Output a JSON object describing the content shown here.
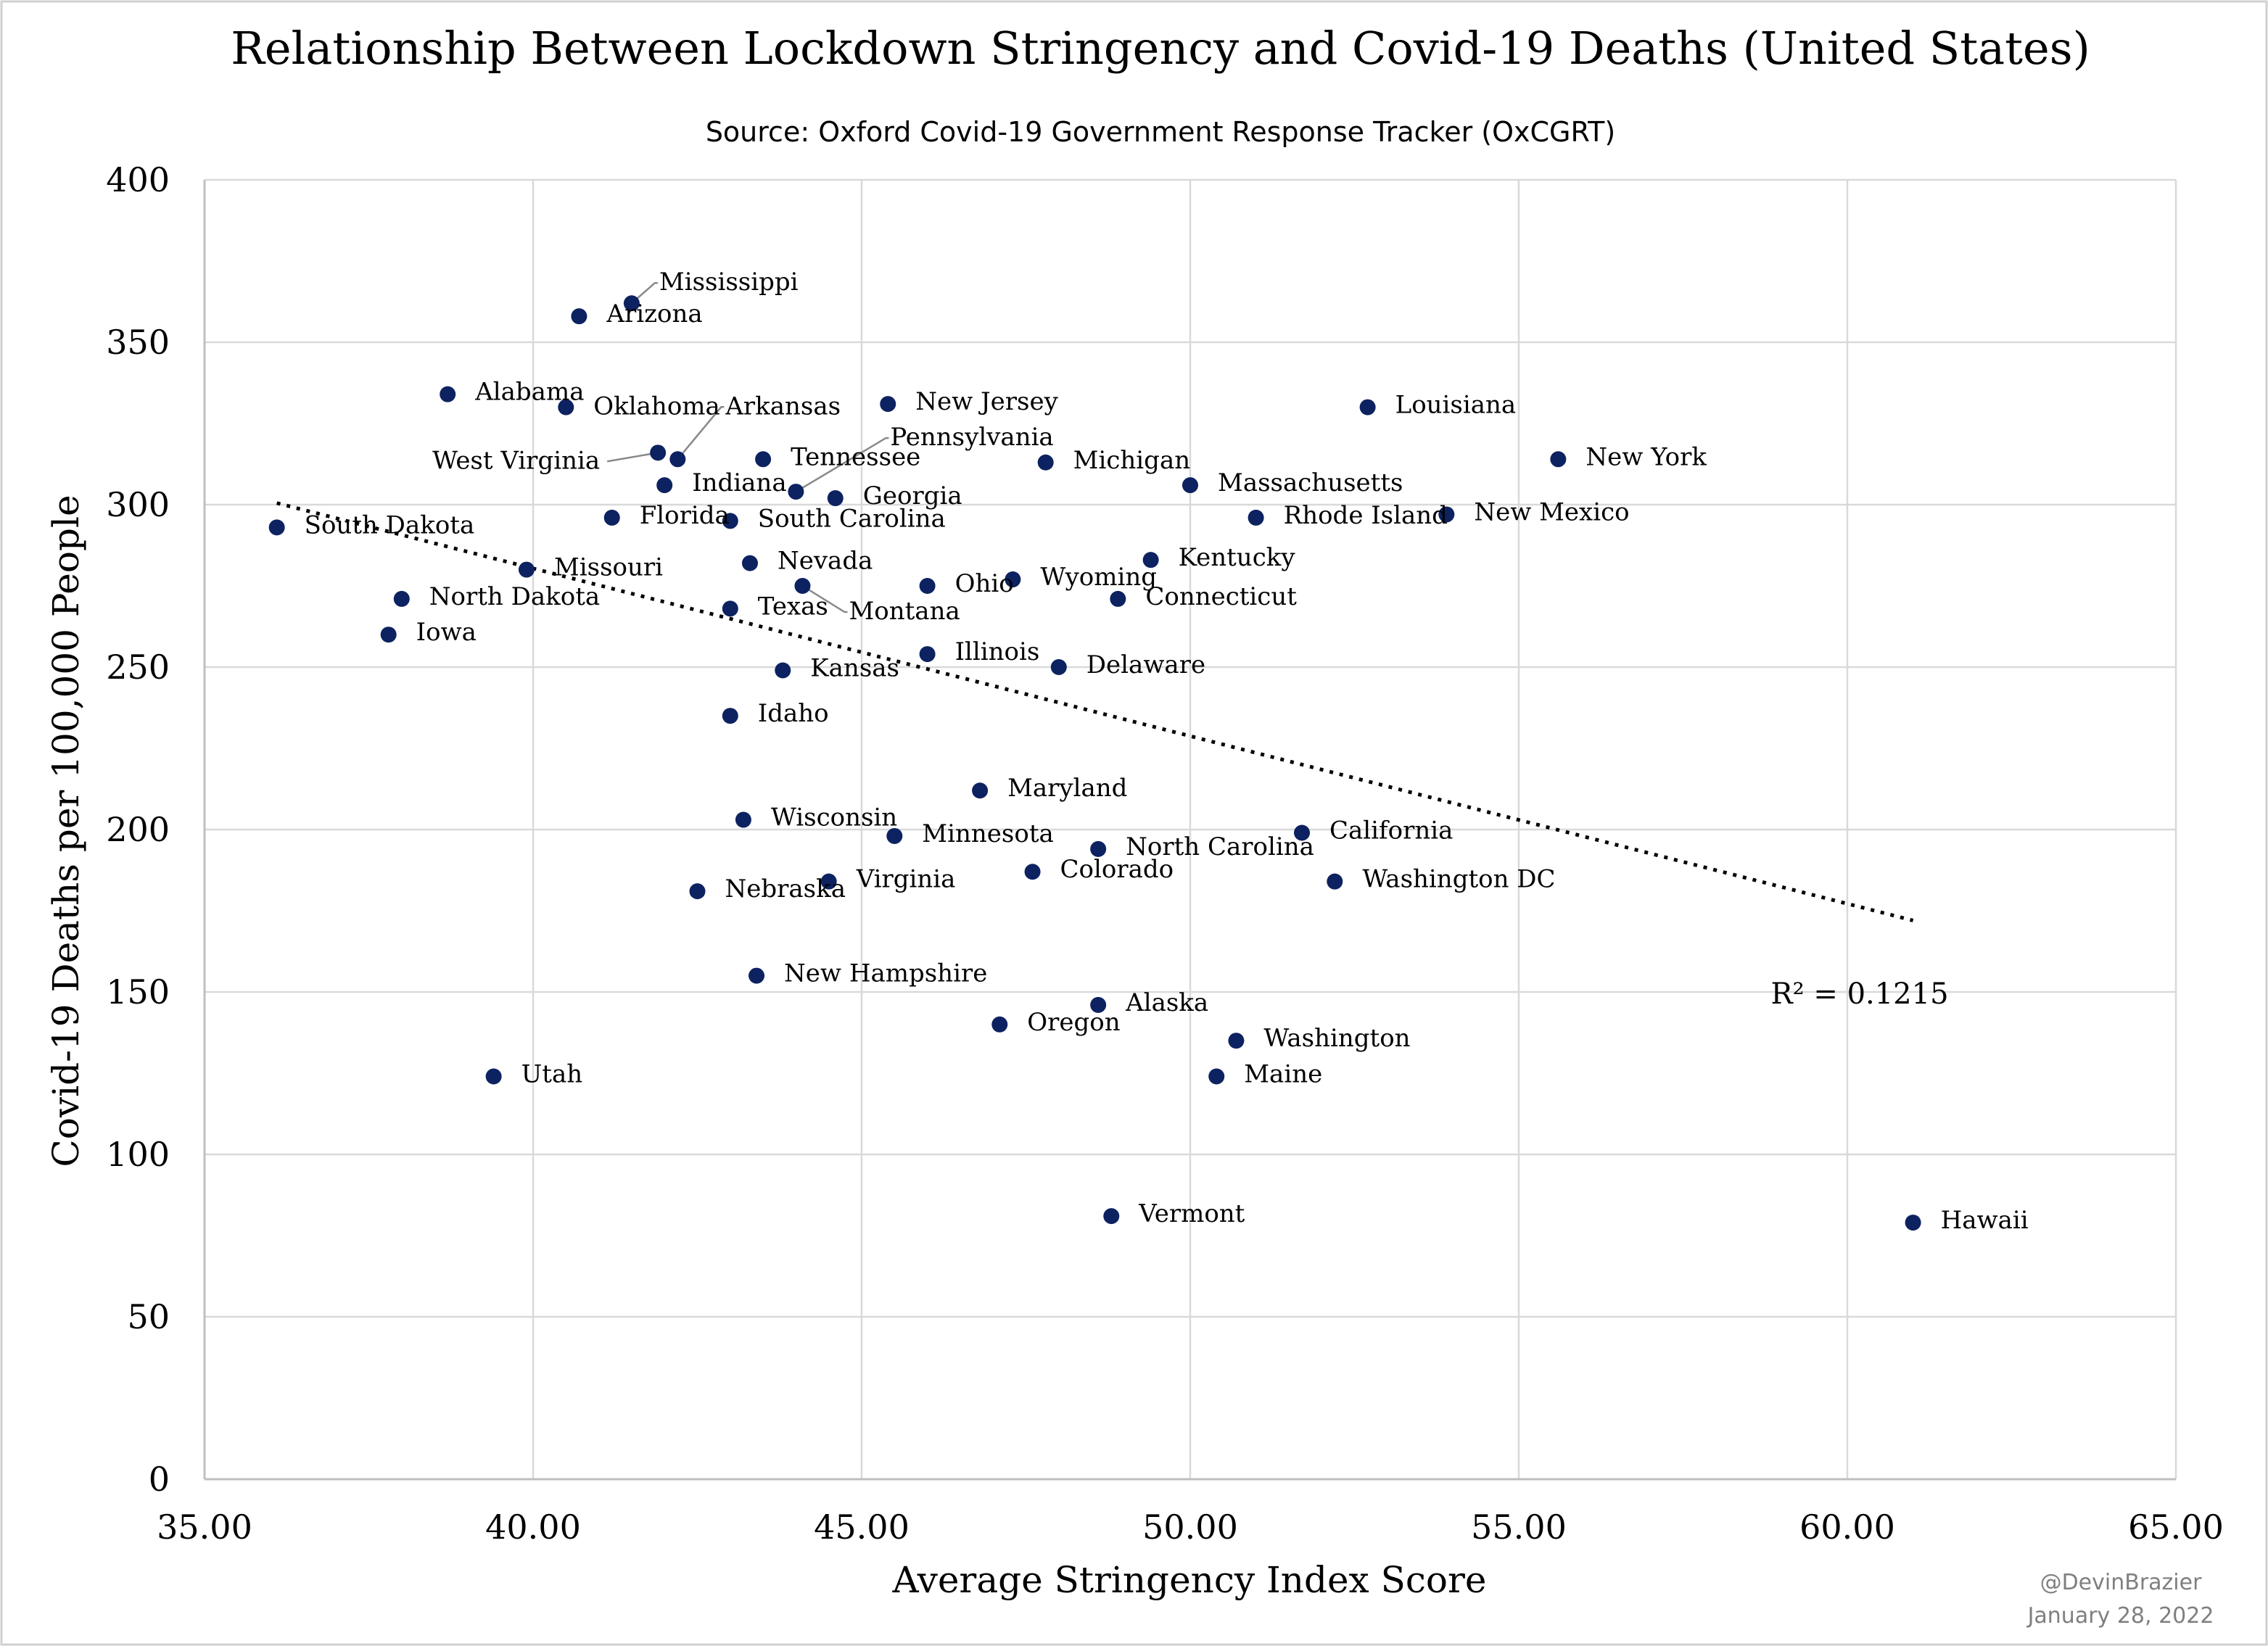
{
  "colors": {
    "marker": "#0d2260",
    "grid": "#d9d9d9",
    "trendline": "#000000",
    "credit": "#7f7f7f"
  },
  "credit": {
    "author": "@DevinBrazier",
    "date": "January 28, 2022"
  },
  "chart_data": {
    "type": "scatter",
    "title": "Relationship Between Lockdown Stringency and Covid-19 Deaths (United States)",
    "subtitle": "Source: Oxford Covid-19 Government Response Tracker (OxCGRT)",
    "xlabel": "Average Stringency Index Score",
    "ylabel": "Covid-19 Deaths per 100,000 People",
    "xlim": [
      35,
      65
    ],
    "ylim": [
      0,
      400
    ],
    "x_ticks": [
      35,
      40,
      45,
      50,
      55,
      60,
      65
    ],
    "x_tick_labels": [
      "35.00",
      "40.00",
      "45.00",
      "50.00",
      "55.00",
      "60.00",
      "65.00"
    ],
    "y_ticks": [
      0,
      50,
      100,
      150,
      200,
      250,
      300,
      350,
      400
    ],
    "y_tick_labels": [
      "0",
      "50",
      "100",
      "150",
      "200",
      "250",
      "300",
      "350",
      "400"
    ],
    "grid": true,
    "legend": "none",
    "trendline": {
      "type": "linear",
      "dotted": true,
      "x": [
        36.1,
        61.0
      ],
      "y": [
        300.5,
        172
      ],
      "annotation": "R² = 0.1215"
    },
    "points": [
      {
        "label": "Mississippi",
        "x": 41.5,
        "y": 362
      },
      {
        "label": "Arizona",
        "x": 40.7,
        "y": 358
      },
      {
        "label": "Alabama",
        "x": 38.7,
        "y": 334
      },
      {
        "label": "Oklahoma",
        "x": 40.5,
        "y": 330
      },
      {
        "label": "Arkansas",
        "x": 42.2,
        "y": 314
      },
      {
        "label": "New Jersey",
        "x": 45.4,
        "y": 331
      },
      {
        "label": "Louisiana",
        "x": 52.7,
        "y": 330
      },
      {
        "label": "West Virginia",
        "x": 41.9,
        "y": 316
      },
      {
        "label": "Tennessee",
        "x": 43.5,
        "y": 314
      },
      {
        "label": "Pennsylvania",
        "x": 44.0,
        "y": 304
      },
      {
        "label": "Michigan",
        "x": 47.8,
        "y": 313
      },
      {
        "label": "New York",
        "x": 55.6,
        "y": 314
      },
      {
        "label": "Indiana",
        "x": 42.0,
        "y": 306
      },
      {
        "label": "Georgia",
        "x": 44.6,
        "y": 302
      },
      {
        "label": "Massachusetts",
        "x": 50.0,
        "y": 306
      },
      {
        "label": "Florida",
        "x": 41.2,
        "y": 296
      },
      {
        "label": "South Carolina",
        "x": 43.0,
        "y": 295
      },
      {
        "label": "Rhode Island",
        "x": 51.0,
        "y": 296
      },
      {
        "label": "New Mexico",
        "x": 53.9,
        "y": 297
      },
      {
        "label": "South Dakota",
        "x": 36.1,
        "y": 293
      },
      {
        "label": "Missouri",
        "x": 39.9,
        "y": 280
      },
      {
        "label": "Nevada",
        "x": 43.3,
        "y": 282
      },
      {
        "label": "Kentucky",
        "x": 49.4,
        "y": 283
      },
      {
        "label": "Ohio",
        "x": 46.0,
        "y": 275
      },
      {
        "label": "Wyoming",
        "x": 47.3,
        "y": 277
      },
      {
        "label": "Montana",
        "x": 44.1,
        "y": 275
      },
      {
        "label": "North Dakota",
        "x": 38.0,
        "y": 271
      },
      {
        "label": "Texas",
        "x": 43.0,
        "y": 268
      },
      {
        "label": "Connecticut",
        "x": 48.9,
        "y": 271
      },
      {
        "label": "Iowa",
        "x": 37.8,
        "y": 260
      },
      {
        "label": "Illinois",
        "x": 46.0,
        "y": 254
      },
      {
        "label": "Kansas",
        "x": 43.8,
        "y": 249
      },
      {
        "label": "Delaware",
        "x": 48.0,
        "y": 250
      },
      {
        "label": "Idaho",
        "x": 43.0,
        "y": 235
      },
      {
        "label": "Maryland",
        "x": 46.8,
        "y": 212
      },
      {
        "label": "Wisconsin",
        "x": 43.2,
        "y": 203
      },
      {
        "label": "Minnesota",
        "x": 45.5,
        "y": 198
      },
      {
        "label": "California",
        "x": 51.7,
        "y": 199
      },
      {
        "label": "North Carolina",
        "x": 48.6,
        "y": 194
      },
      {
        "label": "Colorado",
        "x": 47.6,
        "y": 187
      },
      {
        "label": "Virginia",
        "x": 44.5,
        "y": 184
      },
      {
        "label": "Nebraska",
        "x": 42.5,
        "y": 181
      },
      {
        "label": "Washington DC",
        "x": 52.2,
        "y": 184
      },
      {
        "label": "New Hampshire",
        "x": 43.4,
        "y": 155
      },
      {
        "label": "Alaska",
        "x": 48.6,
        "y": 146
      },
      {
        "label": "Oregon",
        "x": 47.1,
        "y": 140
      },
      {
        "label": "Washington",
        "x": 50.7,
        "y": 135
      },
      {
        "label": "Utah",
        "x": 39.4,
        "y": 124
      },
      {
        "label": "Maine",
        "x": 50.4,
        "y": 124
      },
      {
        "label": "Vermont",
        "x": 48.8,
        "y": 81
      },
      {
        "label": "Hawaii",
        "x": 61.0,
        "y": 79
      }
    ]
  }
}
